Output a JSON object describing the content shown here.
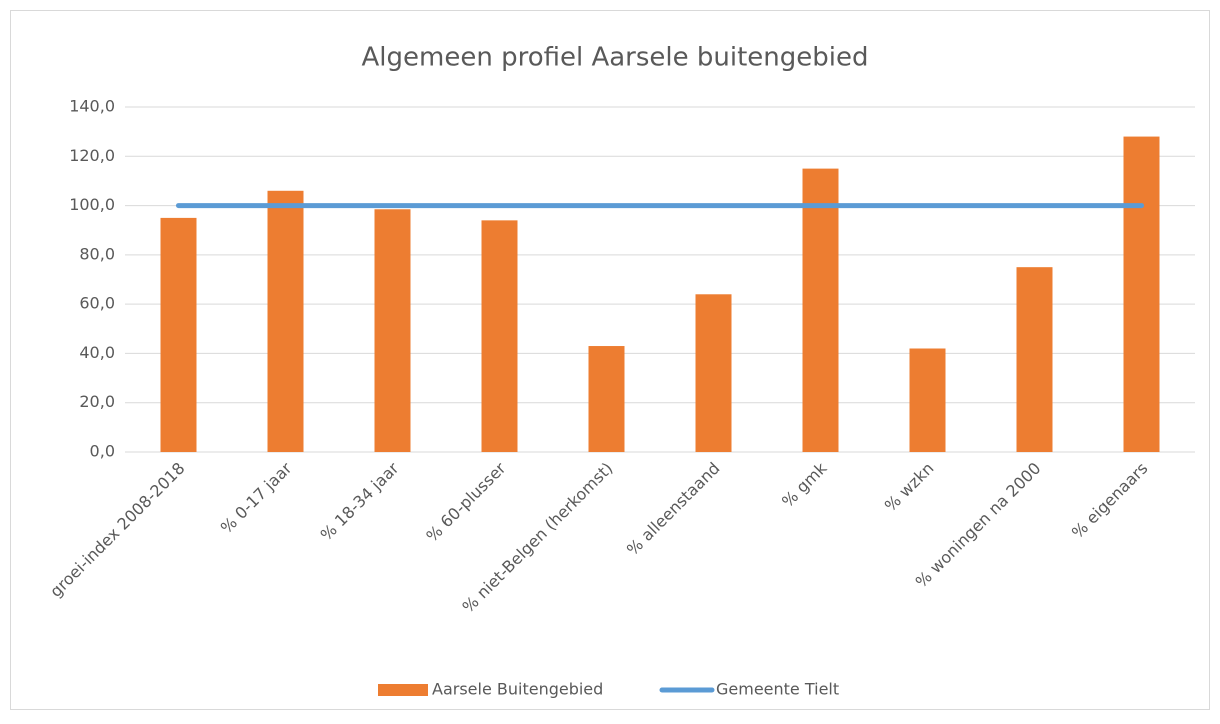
{
  "chart_data": {
    "type": "combo",
    "title": "Algemeen profiel Aarsele buitengebied",
    "categories": [
      "groei-index 2008-2018",
      "% 0-17 jaar",
      "% 18-34 jaar",
      "% 60-plusser",
      "% niet-Belgen (herkomst)",
      "% alleenstaand",
      "% gmk",
      "% wzkn",
      "% woningen na 2000",
      "% eigenaars"
    ],
    "series": [
      {
        "name": "Aarsele Buitengebied",
        "type": "bar",
        "color": "#ed7d31",
        "values": [
          95,
          106,
          98.5,
          94,
          43,
          64,
          115,
          42,
          75,
          128
        ]
      },
      {
        "name": "Gemeente Tielt",
        "type": "line",
        "color": "#5b9bd5",
        "values": [
          100,
          100,
          100,
          100,
          100,
          100,
          100,
          100,
          100,
          100
        ]
      }
    ],
    "ylim": [
      0,
      140
    ],
    "yticks": [
      {
        "value": 0,
        "label": "0,0"
      },
      {
        "value": 20,
        "label": "20,0"
      },
      {
        "value": 40,
        "label": "40,0"
      },
      {
        "value": 60,
        "label": "60,0"
      },
      {
        "value": 80,
        "label": "80,0"
      },
      {
        "value": 100,
        "label": "100,0"
      },
      {
        "value": 120,
        "label": "120,0"
      },
      {
        "value": 140,
        "label": "140,0"
      }
    ],
    "grid": true,
    "legend": "bottom"
  }
}
